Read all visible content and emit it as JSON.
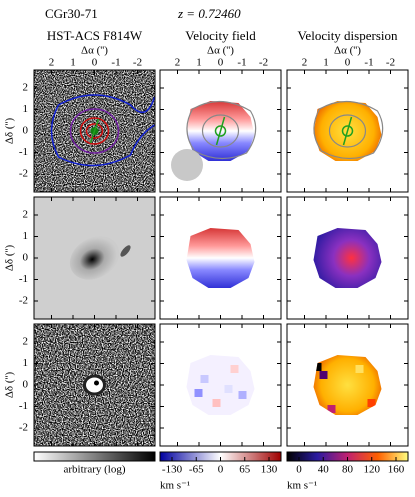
{
  "header": {
    "name": "CGr30-71",
    "redshift": "z = 0.72460"
  },
  "columns": [
    {
      "title": "HST-ACS F814W"
    },
    {
      "title": "Velocity field"
    },
    {
      "title": "Velocity dispersion"
    }
  ],
  "x_axis": {
    "label": "Δα ('')",
    "ticks": [
      "2",
      "1",
      "0",
      "-1",
      "-2"
    ]
  },
  "y_axis": {
    "label": "Δδ ('')",
    "ticks": [
      "2",
      "1",
      "0",
      "-1",
      "-2"
    ]
  },
  "colorbars": [
    {
      "label": "arbitrary (log)"
    },
    {
      "ticks": [
        "-130",
        "-65",
        "0",
        "65",
        "130"
      ],
      "unit": "km s⁻¹"
    },
    {
      "ticks": [
        "0",
        "40",
        "80",
        "120",
        "160"
      ],
      "unit": "km s⁻¹"
    }
  ]
}
